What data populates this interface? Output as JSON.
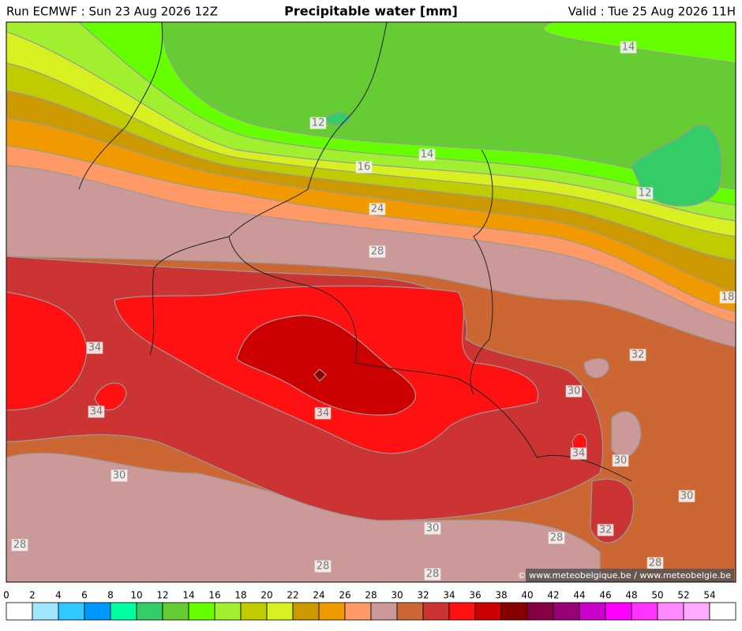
{
  "header": {
    "left": "Run ECMWF : Sun 23 Aug 2026 12Z",
    "title": "Precipitable water [mm]",
    "right": "Valid : Tue 25 Aug 2026 11H"
  },
  "map": {
    "contour_labels": [
      "14",
      "12",
      "14",
      "16",
      "24",
      "28",
      "12",
      "18",
      "34",
      "32",
      "30",
      "34",
      "34",
      "34",
      "30",
      "30",
      "30",
      "30",
      "32",
      "28",
      "28",
      "28",
      "28",
      "28"
    ],
    "copyright": "© www.meteobelgique.be / www.meteobelgie.be"
  },
  "legend": {
    "ticks": [
      0,
      2,
      4,
      6,
      8,
      10,
      12,
      14,
      16,
      18,
      20,
      22,
      24,
      26,
      28,
      30,
      32,
      34,
      36,
      38,
      40,
      42,
      44,
      46,
      48,
      50,
      52,
      54
    ],
    "colors": [
      "#ffffff",
      "#a0e6ff",
      "#30c8ff",
      "#0096ff",
      "#00ffa0",
      "#33cc66",
      "#66cc33",
      "#66ff00",
      "#a0f030",
      "#c0cc00",
      "#d8f020",
      "#cc9900",
      "#f09a00",
      "#ff9966",
      "#cc9999",
      "#cc6633",
      "#cc3333",
      "#ff1111",
      "#cc0000",
      "#880000",
      "#880044",
      "#990077",
      "#cc00cc",
      "#ff00ff",
      "#ff33ff",
      "#ff88ff",
      "#ffaaff",
      "#ffffff"
    ]
  }
}
